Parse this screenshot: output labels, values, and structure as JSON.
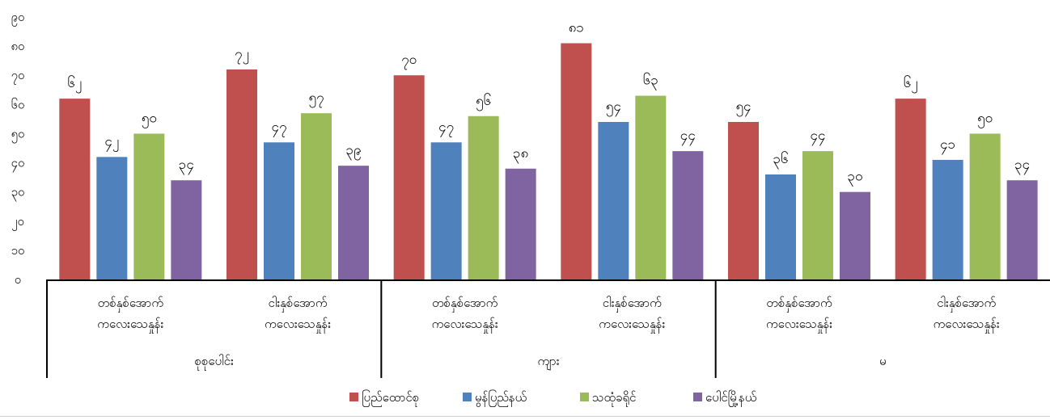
{
  "chart_data": {
    "type": "bar",
    "title": "",
    "xlabel": "",
    "ylabel": "",
    "ylim": [
      0,
      90
    ],
    "yticks": [
      "၀",
      "၁၀",
      "၂၀",
      "၃၀",
      "၄၀",
      "၅၀",
      "၆၀",
      "၇၀",
      "၈၀",
      "၉၀"
    ],
    "grid": false,
    "legend_position": "bottom",
    "groups": [
      {
        "label": "စုစုပေါင်း",
        "categories": [
          "တစ်နှစ်အောက်\nကလေးသေနှုန်း",
          "ငါးနှစ်အောက်\nကလေးသေနှုန်း"
        ]
      },
      {
        "label": "ကျား",
        "categories": [
          "တစ်နှစ်အောက်\nကလေးသေနှုန်း",
          "ငါးနှစ်အောက်\nကလေးသေနှုန်း"
        ]
      },
      {
        "label": "မ",
        "categories": [
          "တစ်နှစ်အောက်\nကလေးသေနှုန်း",
          "ငါးနှစ်အောက်\nကလေးသေနှုန်း"
        ]
      }
    ],
    "series": [
      {
        "name": "ပြည်ထောင်စု",
        "color": "#c0504d",
        "values": [
          62,
          72,
          70,
          81,
          54,
          62
        ],
        "labels": [
          "၆၂",
          "၇၂",
          "၇၀",
          "၈၁",
          "၅၄",
          "၆၂"
        ]
      },
      {
        "name": "မွန်ပြည်နယ်",
        "color": "#4f81bd",
        "values": [
          42,
          47,
          47,
          54,
          36,
          41
        ],
        "labels": [
          "၄၂",
          "၄၇",
          "၄၇",
          "၅၄",
          "၃၆",
          "၄၁"
        ]
      },
      {
        "name": "သထုံခရိုင်",
        "color": "#9bbb59",
        "values": [
          50,
          57,
          56,
          63,
          44,
          50
        ],
        "labels": [
          "၅၀",
          "၅၇",
          "၅၆",
          "၆၃",
          "၄၄",
          "၅၀"
        ]
      },
      {
        "name": "ပေါင်မြို့နယ်",
        "color": "#8064a2",
        "values": [
          34,
          39,
          38,
          44,
          30,
          34
        ],
        "labels": [
          "၃၄",
          "၃၉",
          "၃၈",
          "၄၄",
          "၃၀",
          "၃၄"
        ]
      }
    ]
  }
}
